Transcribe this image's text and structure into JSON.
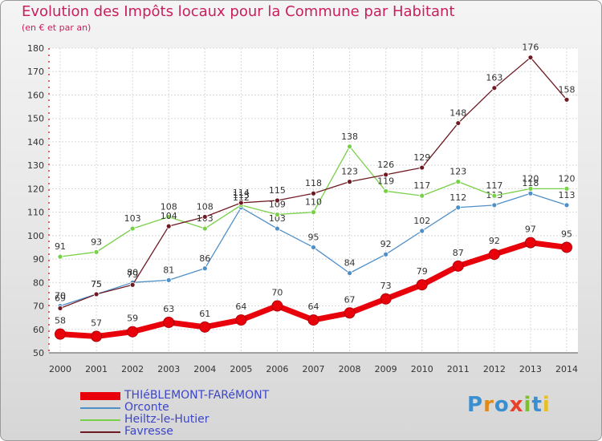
{
  "title": "Evolution des Impôts locaux pour la Commune par Habitant",
  "subtitle": "(en € et par an)",
  "brand": {
    "text": "Proxiti"
  },
  "chart_data": {
    "type": "line",
    "title": "Evolution des Impôts locaux pour la Commune par Habitant",
    "subtitle": "(en € et par an)",
    "x": [
      2000,
      2001,
      2002,
      2003,
      2004,
      2005,
      2006,
      2007,
      2008,
      2009,
      2010,
      2011,
      2012,
      2013,
      2014
    ],
    "ylim": [
      50,
      180
    ],
    "yticks": [
      50,
      60,
      70,
      80,
      90,
      100,
      110,
      120,
      130,
      140,
      150,
      160,
      170,
      180
    ],
    "grid": true,
    "legend_position": "bottom-left",
    "series": [
      {
        "name": "THIéBLEMONT-FARéMONT",
        "color": "#e8000b",
        "values": [
          58,
          57,
          59,
          63,
          61,
          64,
          70,
          64,
          67,
          73,
          79,
          87,
          92,
          97,
          95
        ]
      },
      {
        "name": "Orconte",
        "color": "#4f8fc8",
        "values": [
          70,
          75,
          80,
          81,
          86,
          112,
          103,
          95,
          84,
          92,
          102,
          112,
          113,
          118,
          113
        ]
      },
      {
        "name": "Heiltz-le-Hutier",
        "color": "#78d048",
        "values": [
          91,
          93,
          103,
          108,
          103,
          113,
          109,
          110,
          138,
          119,
          117,
          123,
          117,
          120,
          120
        ]
      },
      {
        "name": "Favresse",
        "color": "#6e1a22",
        "values": [
          69,
          75,
          79,
          104,
          108,
          114,
          115,
          118,
          123,
          126,
          129,
          148,
          163,
          176,
          158
        ]
      }
    ]
  }
}
